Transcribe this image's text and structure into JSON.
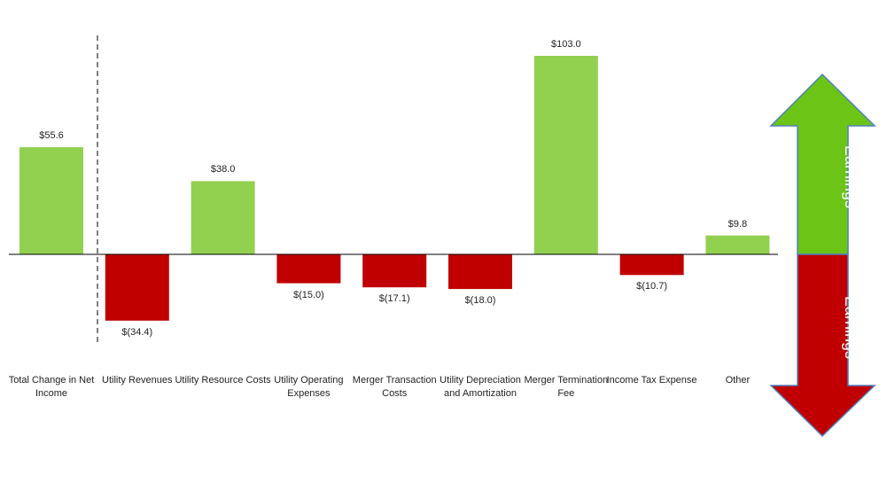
{
  "chart_data": {
    "type": "bar",
    "categories": [
      "Total Change in Net Income",
      "Utility Revenues",
      "Utility Resource Costs",
      "Utility Operating Expenses",
      "Merger Transaction Costs",
      "Utility Depreciation and Amortization",
      "Merger Termination Fee",
      "Income Tax Expense",
      "Other"
    ],
    "values": [
      55.6,
      -34.4,
      38.0,
      -15.0,
      -17.1,
      -18.0,
      103.0,
      -10.7,
      9.8
    ],
    "value_labels": [
      "$55.6",
      "$(34.4)",
      "$38.0",
      "$(15.0)",
      "$(17.1)",
      "$(18.0)",
      "$103.0",
      "$(10.7)",
      "$9.8"
    ],
    "title": "",
    "xlabel": "",
    "ylabel": "",
    "ylim": [
      -46,
      110
    ],
    "grid": false,
    "colors": {
      "positive": "#92d050",
      "negative": "#c00000"
    }
  },
  "legend_arrows": {
    "increase_label": "Increase to Earnings",
    "decrease_label": "Decrease to Earnings",
    "increase_color": "#6cc417",
    "decrease_color": "#c00000"
  }
}
